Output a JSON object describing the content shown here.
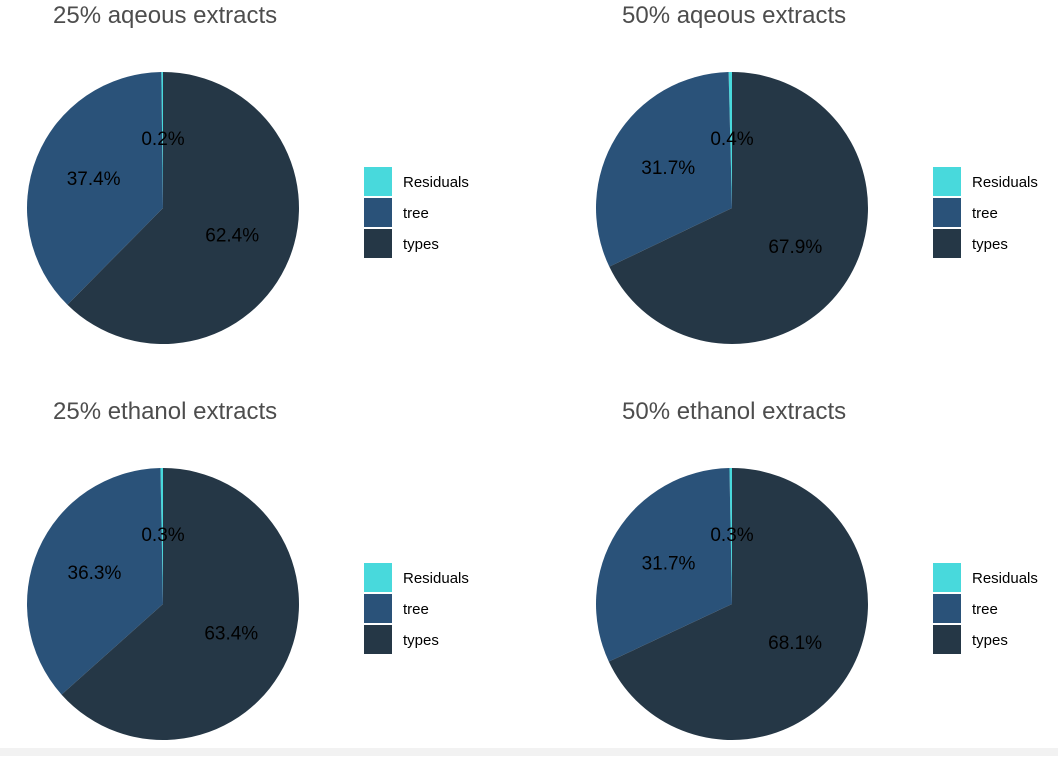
{
  "chart_data": [
    {
      "type": "pie",
      "title": "25% aqeous extracts",
      "slices": [
        {
          "label": "Residuals",
          "value": 0.2,
          "display": "0.2%"
        },
        {
          "label": "tree",
          "value": 37.4,
          "display": "37.4%"
        },
        {
          "label": "types",
          "value": 62.4,
          "display": "62.4%"
        }
      ],
      "legend_position": "right"
    },
    {
      "type": "pie",
      "title": "50% aqeous extracts",
      "slices": [
        {
          "label": "Residuals",
          "value": 0.4,
          "display": "0.4%"
        },
        {
          "label": "tree",
          "value": 31.7,
          "display": "31.7%"
        },
        {
          "label": "types",
          "value": 67.9,
          "display": "67.9%"
        }
      ],
      "legend_position": "right"
    },
    {
      "type": "pie",
      "title": "25% ethanol extracts",
      "slices": [
        {
          "label": "Residuals",
          "value": 0.3,
          "display": "0.3%"
        },
        {
          "label": "tree",
          "value": 36.3,
          "display": "36.3%"
        },
        {
          "label": "types",
          "value": 63.4,
          "display": "63.4%"
        }
      ],
      "legend_position": "right"
    },
    {
      "type": "pie",
      "title": "50% ethanol extracts",
      "slices": [
        {
          "label": "Residuals",
          "value": 0.3,
          "display": "0.3%"
        },
        {
          "label": "tree",
          "value": 31.7,
          "display": "31.7%"
        },
        {
          "label": "types",
          "value": 68.1,
          "display": "68.1%"
        }
      ],
      "legend_position": "right"
    }
  ],
  "colors": {
    "Residuals": "#48d9dc",
    "tree": "#2a5279",
    "types": "#253746"
  }
}
